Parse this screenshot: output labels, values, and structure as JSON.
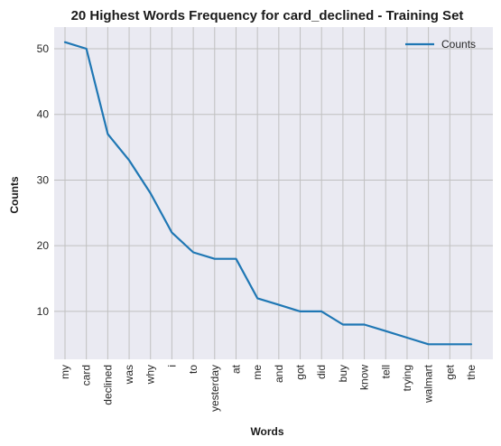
{
  "chart_data": {
    "type": "line",
    "title": "20 Highest Words Frequency for card_declined - Training Set",
    "xlabel": "Words",
    "ylabel": "Counts",
    "categories": [
      "my",
      "card",
      "declined",
      "was",
      "why",
      "i",
      "to",
      "yesterday",
      "at",
      "me",
      "and",
      "got",
      "did",
      "buy",
      "know",
      "tell",
      "trying",
      "walmart",
      "get",
      "the"
    ],
    "series": [
      {
        "name": "Counts",
        "values": [
          51,
          50,
          37,
          33,
          28,
          22,
          19,
          18,
          18,
          12,
          11,
          10,
          10,
          8,
          8,
          7,
          6,
          5,
          5,
          5
        ],
        "color": "#1f77b4"
      }
    ],
    "yticks": [
      10,
      20,
      30,
      40,
      50
    ],
    "ylim": [
      2.7,
      53.3
    ],
    "grid": true,
    "legend": "top-right",
    "background": "#eaeaf2",
    "grid_color": "#c0c0c0"
  }
}
